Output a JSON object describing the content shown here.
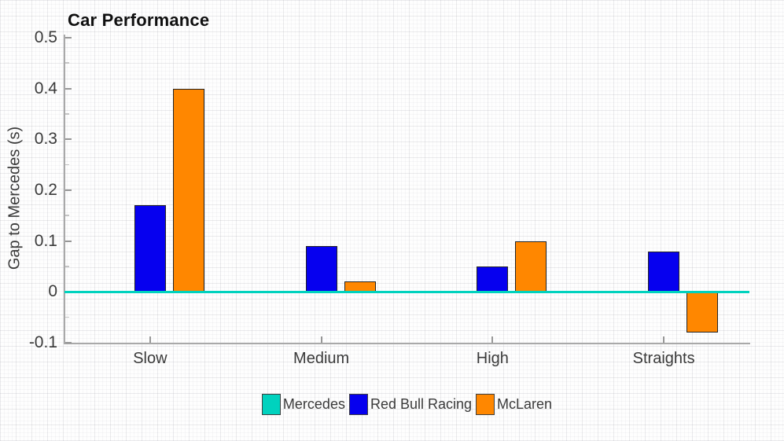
{
  "chart_data": {
    "type": "bar",
    "title": "Car Performance",
    "ylabel": "Gap to Mercedes (s)",
    "xlabel": "",
    "categories": [
      "Slow",
      "Medium",
      "High",
      "Straights"
    ],
    "series": [
      {
        "name": "Mercedes",
        "color": "#00D2BE",
        "values": [
          0,
          0,
          0,
          0
        ]
      },
      {
        "name": "Red Bull Racing",
        "color": "#0600EF",
        "values": [
          0.17,
          0.09,
          0.05,
          0.08
        ]
      },
      {
        "name": "McLaren",
        "color": "#FF8700",
        "values": [
          0.4,
          0.02,
          0.1,
          -0.08
        ]
      }
    ],
    "ylim": [
      -0.1,
      0.5
    ],
    "yticks": [
      -0.1,
      0,
      0.1,
      0.2,
      0.3,
      0.4,
      0.5
    ],
    "ytick_labels": [
      "-0.1",
      "0",
      "0.1",
      "0.2",
      "0.3",
      "0.4",
      "0.5"
    ],
    "zero_line": {
      "value": 0,
      "color": "#00D2BE"
    },
    "legend_position": "bottom",
    "grid": false,
    "text_color": "#3a3a3a",
    "bar_edge_color": "#232323"
  }
}
